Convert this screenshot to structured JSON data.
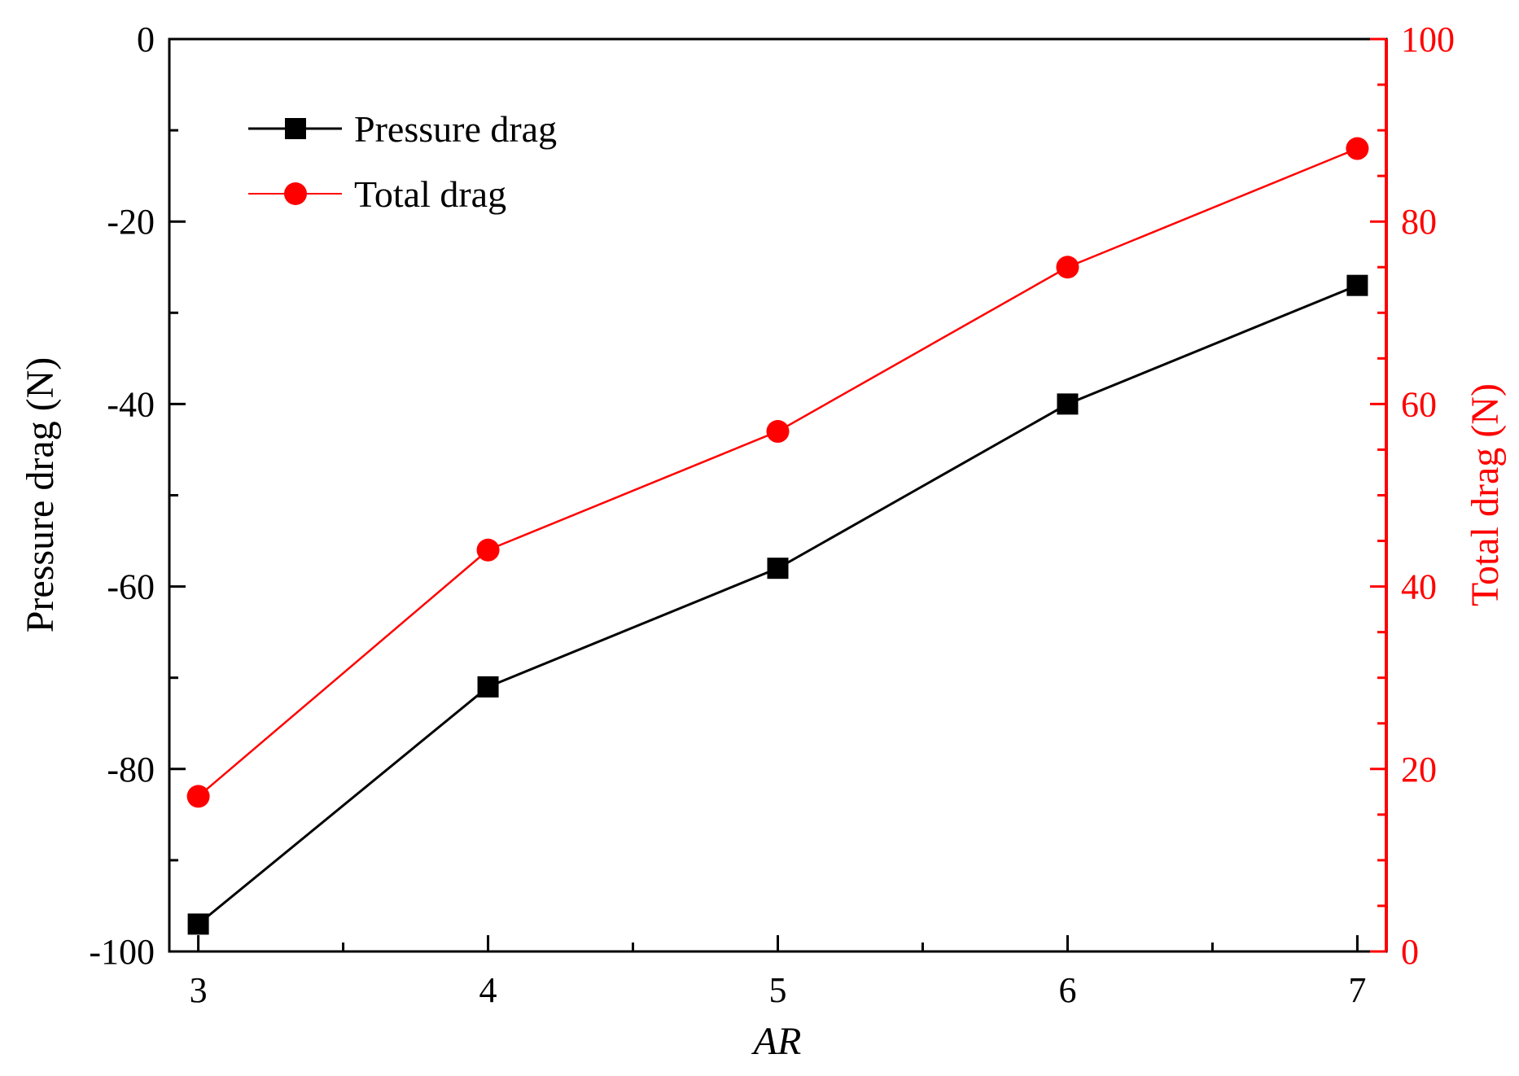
{
  "chart_data": {
    "type": "line",
    "x": [
      3,
      4,
      5,
      6,
      7
    ],
    "xlabel": "AR",
    "xlim": [
      2.9,
      7.1
    ],
    "x_ticks": [
      "3",
      "4",
      "5",
      "6",
      "7"
    ],
    "y_left": {
      "label": "Pressure drag (N)",
      "lim": [
        -100,
        0
      ],
      "ticks": [
        "0",
        "-20",
        "-40",
        "-60",
        "-80",
        "-100"
      ],
      "color": "#000000"
    },
    "y_right": {
      "label": "Total drag (N)",
      "lim": [
        0,
        100
      ],
      "ticks": [
        "100",
        "80",
        "60",
        "40",
        "20",
        "0"
      ],
      "color": "#ff0000"
    },
    "series": [
      {
        "name": "Pressure drag",
        "axis": "left",
        "marker": "square",
        "color": "#000000",
        "values": [
          -97,
          -71,
          -58,
          -40,
          -27
        ]
      },
      {
        "name": "Total drag",
        "axis": "right",
        "marker": "circle",
        "color": "#ff0000",
        "values": [
          17,
          44,
          57,
          75,
          88
        ]
      }
    ],
    "grid": false,
    "legend": "top-left"
  }
}
